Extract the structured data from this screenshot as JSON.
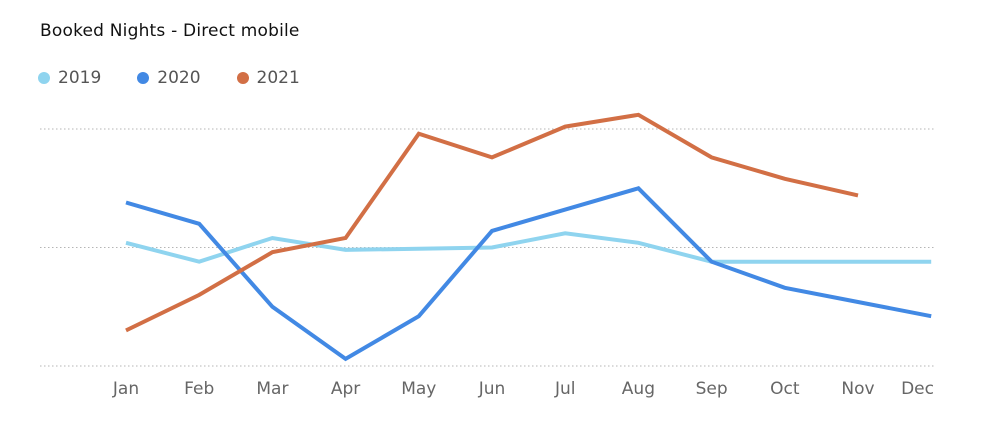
{
  "chart_data": {
    "type": "line",
    "title": "Booked Nights - Direct mobile",
    "xlabel": "",
    "ylabel": "",
    "categories": [
      "Jan",
      "Feb",
      "Mar",
      "Apr",
      "May",
      "Jun",
      "Jul",
      "Aug",
      "Sep",
      "Oct",
      "Nov",
      "Dec"
    ],
    "ylim": [
      0,
      100
    ],
    "y_tick_labels_shown": false,
    "grid": "horizontal dotted",
    "legend": "top-left",
    "series": [
      {
        "name": "2019",
        "color": "#8fd4ef",
        "values": [
          52,
          44,
          54,
          49,
          49.5,
          50,
          56,
          52,
          44,
          44,
          44,
          44
        ]
      },
      {
        "name": "2020",
        "color": "#4289e4",
        "values": [
          69,
          60,
          25,
          3,
          21,
          57,
          66,
          75,
          44,
          33,
          27,
          21
        ]
      },
      {
        "name": "2021",
        "color": "#d26f45",
        "values": [
          15,
          30,
          48,
          54,
          98,
          88,
          101,
          106,
          88,
          79,
          72,
          null
        ]
      }
    ]
  }
}
